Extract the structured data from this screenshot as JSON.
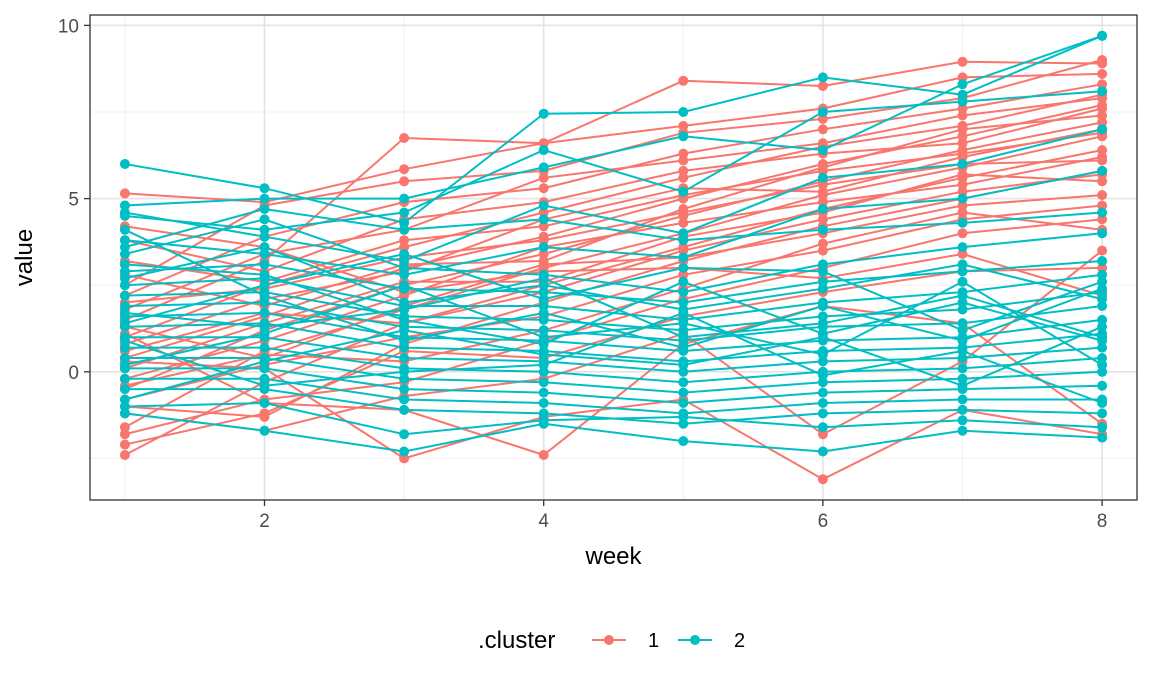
{
  "chart_data": {
    "type": "line",
    "title": "",
    "xlabel": "week",
    "ylabel": "value",
    "xlim": [
      0.75,
      8.25
    ],
    "ylim": [
      -3.7,
      10.3
    ],
    "x_ticks": [
      2,
      4,
      6,
      8
    ],
    "x_tick_labels": [
      "2",
      "4",
      "6",
      "8"
    ],
    "y_ticks": [
      0,
      5,
      10
    ],
    "y_tick_labels": [
      "0",
      "5",
      "10"
    ],
    "grid": true,
    "legend": {
      "title": ".cluster",
      "position": "bottom",
      "entries": [
        {
          "label": "1",
          "color": "#F8766D"
        },
        {
          "label": "2",
          "color": "#00BFC4"
        }
      ]
    },
    "x": [
      1,
      2,
      3,
      4,
      5,
      6,
      7,
      8
    ],
    "series": [
      {
        "cluster": "1",
        "color": "#F8766D",
        "values": [
          5.15,
          4.9,
          5.85,
          6.6,
          8.4,
          8.25,
          8.95,
          8.9
        ]
      },
      {
        "cluster": "1",
        "color": "#F8766D",
        "values": [
          1.5,
          3.2,
          6.75,
          6.6,
          7.1,
          7.6,
          8.5,
          8.6
        ]
      },
      {
        "cluster": "1",
        "color": "#F8766D",
        "values": [
          2.5,
          4.8,
          5.5,
          5.8,
          6.9,
          7.3,
          7.9,
          9.0
        ]
      },
      {
        "cluster": "1",
        "color": "#F8766D",
        "values": [
          2.2,
          3.9,
          4.9,
          5.3,
          6.3,
          7.0,
          7.6,
          8.3
        ]
      },
      {
        "cluster": "1",
        "color": "#F8766D",
        "values": [
          1.0,
          2.5,
          3.6,
          4.6,
          5.6,
          6.5,
          7.1,
          8.0
        ]
      },
      {
        "cluster": "1",
        "color": "#F8766D",
        "values": [
          0.4,
          1.6,
          3.0,
          3.9,
          5.0,
          6.0,
          6.8,
          7.7
        ]
      },
      {
        "cluster": "1",
        "color": "#F8766D",
        "values": [
          -0.5,
          1.2,
          2.5,
          3.4,
          4.5,
          5.5,
          6.4,
          7.2
        ]
      },
      {
        "cluster": "1",
        "color": "#F8766D",
        "values": [
          3.2,
          2.6,
          3.8,
          4.2,
          5.1,
          5.8,
          6.3,
          6.9
        ]
      },
      {
        "cluster": "1",
        "color": "#F8766D",
        "values": [
          -1.6,
          0.6,
          1.8,
          3.0,
          4.0,
          5.1,
          5.9,
          6.8
        ]
      },
      {
        "cluster": "1",
        "color": "#F8766D",
        "values": [
          -2.4,
          -0.3,
          1.4,
          2.5,
          3.6,
          4.7,
          5.6,
          6.4
        ]
      },
      {
        "cluster": "1",
        "color": "#F8766D",
        "values": [
          1.8,
          3.4,
          4.1,
          5.6,
          6.1,
          6.6,
          7.4,
          7.9
        ]
      },
      {
        "cluster": "1",
        "color": "#F8766D",
        "values": [
          0.8,
          2.1,
          2.9,
          4.4,
          5.3,
          5.2,
          6.2,
          7.0
        ]
      },
      {
        "cluster": "1",
        "color": "#F8766D",
        "values": [
          -0.2,
          0.9,
          2.2,
          3.6,
          4.3,
          4.9,
          5.4,
          6.2
        ]
      },
      {
        "cluster": "1",
        "color": "#F8766D",
        "values": [
          2.8,
          1.9,
          3.1,
          3.2,
          4.7,
          5.9,
          7.0,
          7.4
        ]
      },
      {
        "cluster": "1",
        "color": "#F8766D",
        "values": [
          -1.0,
          -1.3,
          0.8,
          2.0,
          3.2,
          4.2,
          5.0,
          5.8
        ]
      },
      {
        "cluster": "1",
        "color": "#F8766D",
        "values": [
          0.1,
          1.4,
          2.6,
          2.6,
          3.9,
          4.6,
          5.7,
          5.5
        ]
      },
      {
        "cluster": "1",
        "color": "#F8766D",
        "values": [
          1.3,
          0.4,
          1.9,
          3.1,
          3.3,
          4.0,
          4.8,
          5.1
        ]
      },
      {
        "cluster": "1",
        "color": "#F8766D",
        "values": [
          -0.8,
          0.2,
          1.0,
          1.6,
          2.8,
          3.5,
          4.4,
          4.8
        ]
      },
      {
        "cluster": "1",
        "color": "#F8766D",
        "values": [
          3.8,
          2.9,
          4.4,
          4.9,
          5.8,
          6.3,
          6.6,
          7.6
        ]
      },
      {
        "cluster": "1",
        "color": "#F8766D",
        "values": [
          -1.8,
          -0.8,
          -0.3,
          0.9,
          2.1,
          3.0,
          4.0,
          4.4
        ]
      },
      {
        "cluster": "1",
        "color": "#F8766D",
        "values": [
          2.0,
          2.4,
          3.3,
          3.8,
          4.6,
          5.4,
          6.0,
          6.1
        ]
      },
      {
        "cluster": "1",
        "color": "#F8766D",
        "values": [
          0.6,
          1.7,
          1.4,
          2.3,
          3.5,
          4.4,
          5.2,
          5.7
        ]
      },
      {
        "cluster": "1",
        "color": "#F8766D",
        "values": [
          -0.4,
          0.5,
          0.3,
          1.2,
          2.4,
          3.7,
          4.6,
          4.1
        ]
      },
      {
        "cluster": "1",
        "color": "#F8766D",
        "values": [
          1.1,
          -0.9,
          -1.1,
          -2.4,
          0.8,
          1.9,
          1.4,
          -1.5
        ]
      },
      {
        "cluster": "1",
        "color": "#F8766D",
        "values": [
          0.3,
          0.1,
          -2.5,
          -1.3,
          -0.8,
          -3.1,
          -1.1,
          -1.8
        ]
      },
      {
        "cluster": "1",
        "color": "#F8766D",
        "values": [
          -1.2,
          -1.7,
          -0.7,
          -0.2,
          1.1,
          -1.8,
          0.3,
          3.5
        ]
      },
      {
        "cluster": "1",
        "color": "#F8766D",
        "values": [
          4.2,
          3.6,
          2.3,
          2.9,
          3.0,
          2.7,
          3.4,
          2.2
        ]
      },
      {
        "cluster": "1",
        "color": "#F8766D",
        "values": [
          -2.1,
          -1.2,
          0.6,
          0.4,
          1.6,
          2.3,
          2.9,
          3.0
        ]
      },
      {
        "cluster": "2",
        "color": "#00BFC4",
        "values": [
          6.0,
          5.3,
          4.3,
          7.45,
          7.5,
          8.5,
          8.0,
          9.7
        ]
      },
      {
        "cluster": "2",
        "color": "#00BFC4",
        "values": [
          4.8,
          5.0,
          5.0,
          5.9,
          6.8,
          6.4,
          8.3,
          9.7
        ]
      },
      {
        "cluster": "2",
        "color": "#00BFC4",
        "values": [
          4.5,
          4.1,
          4.6,
          6.4,
          5.2,
          7.5,
          7.8,
          8.1
        ]
      },
      {
        "cluster": "2",
        "color": "#00BFC4",
        "values": [
          4.6,
          3.9,
          3.2,
          4.8,
          4.0,
          5.6,
          6.0,
          7.0
        ]
      },
      {
        "cluster": "2",
        "color": "#00BFC4",
        "values": [
          3.8,
          3.4,
          2.8,
          3.6,
          3.3,
          4.7,
          5.0,
          5.8
        ]
      },
      {
        "cluster": "2",
        "color": "#00BFC4",
        "values": [
          3.4,
          4.4,
          3.0,
          2.8,
          2.3,
          3.1,
          3.6,
          4.0
        ]
      },
      {
        "cluster": "2",
        "color": "#00BFC4",
        "values": [
          2.9,
          3.1,
          2.4,
          2.3,
          2.0,
          2.6,
          2.9,
          3.2
        ]
      },
      {
        "cluster": "2",
        "color": "#00BFC4",
        "values": [
          2.5,
          2.7,
          1.9,
          1.9,
          1.5,
          2.0,
          2.3,
          2.8
        ]
      },
      {
        "cluster": "2",
        "color": "#00BFC4",
        "values": [
          2.2,
          2.3,
          1.6,
          1.5,
          1.2,
          1.6,
          1.8,
          2.3
        ]
      },
      {
        "cluster": "2",
        "color": "#00BFC4",
        "values": [
          1.9,
          2.0,
          1.3,
          1.2,
          0.9,
          1.3,
          1.4,
          1.9
        ]
      },
      {
        "cluster": "2",
        "color": "#00BFC4",
        "values": [
          1.6,
          1.7,
          1.0,
          0.9,
          0.6,
          0.9,
          1.0,
          1.5
        ]
      },
      {
        "cluster": "2",
        "color": "#00BFC4",
        "values": [
          1.3,
          1.4,
          0.7,
          0.6,
          0.3,
          0.6,
          0.7,
          1.1
        ]
      },
      {
        "cluster": "2",
        "color": "#00BFC4",
        "values": [
          1.0,
          1.0,
          0.4,
          0.3,
          0.0,
          0.3,
          0.4,
          0.7
        ]
      },
      {
        "cluster": "2",
        "color": "#00BFC4",
        "values": [
          0.7,
          0.7,
          0.1,
          0.0,
          -0.3,
          0.0,
          0.1,
          0.4
        ]
      },
      {
        "cluster": "2",
        "color": "#00BFC4",
        "values": [
          0.4,
          0.4,
          -0.2,
          -0.3,
          -0.6,
          -0.3,
          -0.2,
          0.0
        ]
      },
      {
        "cluster": "2",
        "color": "#00BFC4",
        "values": [
          0.1,
          0.1,
          -0.5,
          -0.6,
          -0.9,
          -0.6,
          -0.5,
          -0.4
        ]
      },
      {
        "cluster": "2",
        "color": "#00BFC4",
        "values": [
          -0.2,
          -0.2,
          -0.8,
          -0.9,
          -1.2,
          -0.9,
          -0.8,
          -0.8
        ]
      },
      {
        "cluster": "2",
        "color": "#00BFC4",
        "values": [
          -0.5,
          -0.5,
          -1.1,
          -1.2,
          -1.5,
          -1.2,
          -1.1,
          -1.2
        ]
      },
      {
        "cluster": "2",
        "color": "#00BFC4",
        "values": [
          -1.2,
          -1.7,
          -2.3,
          -1.5,
          -2.0,
          -2.3,
          -1.7,
          -1.9
        ]
      },
      {
        "cluster": "2",
        "color": "#00BFC4",
        "values": [
          -1.0,
          -0.9,
          -1.8,
          -1.4,
          -1.3,
          -1.6,
          -1.4,
          -1.6
        ]
      },
      {
        "cluster": "2",
        "color": "#00BFC4",
        "values": [
          2.7,
          3.6,
          2.0,
          2.5,
          1.8,
          2.4,
          3.1,
          2.1
        ]
      },
      {
        "cluster": "2",
        "color": "#00BFC4",
        "values": [
          3.1,
          2.8,
          1.5,
          0.8,
          2.6,
          1.1,
          2.0,
          0.9
        ]
      },
      {
        "cluster": "2",
        "color": "#00BFC4",
        "values": [
          1.4,
          2.5,
          3.4,
          2.1,
          3.0,
          2.9,
          1.2,
          2.6
        ]
      },
      {
        "cluster": "2",
        "color": "#00BFC4",
        "values": [
          0.2,
          1.1,
          2.5,
          1.0,
          1.4,
          0.5,
          2.6,
          0.2
        ]
      },
      {
        "cluster": "2",
        "color": "#00BFC4",
        "values": [
          4.1,
          2.2,
          0.9,
          1.7,
          0.7,
          1.9,
          0.9,
          2.4
        ]
      },
      {
        "cluster": "2",
        "color": "#00BFC4",
        "values": [
          -0.8,
          0.3,
          1.2,
          0.5,
          0.2,
          1.0,
          -0.4,
          1.3
        ]
      },
      {
        "cluster": "2",
        "color": "#00BFC4",
        "values": [
          0.9,
          -0.4,
          0.0,
          0.2,
          1.7,
          -0.1,
          0.6,
          -0.9
        ]
      },
      {
        "cluster": "2",
        "color": "#00BFC4",
        "values": [
          1.7,
          1.3,
          1.8,
          2.7,
          1.0,
          1.4,
          2.2,
          1.0
        ]
      },
      {
        "cluster": "2",
        "color": "#00BFC4",
        "values": [
          3.6,
          4.7,
          4.1,
          4.4,
          3.8,
          4.1,
          4.3,
          4.6
        ]
      }
    ]
  }
}
